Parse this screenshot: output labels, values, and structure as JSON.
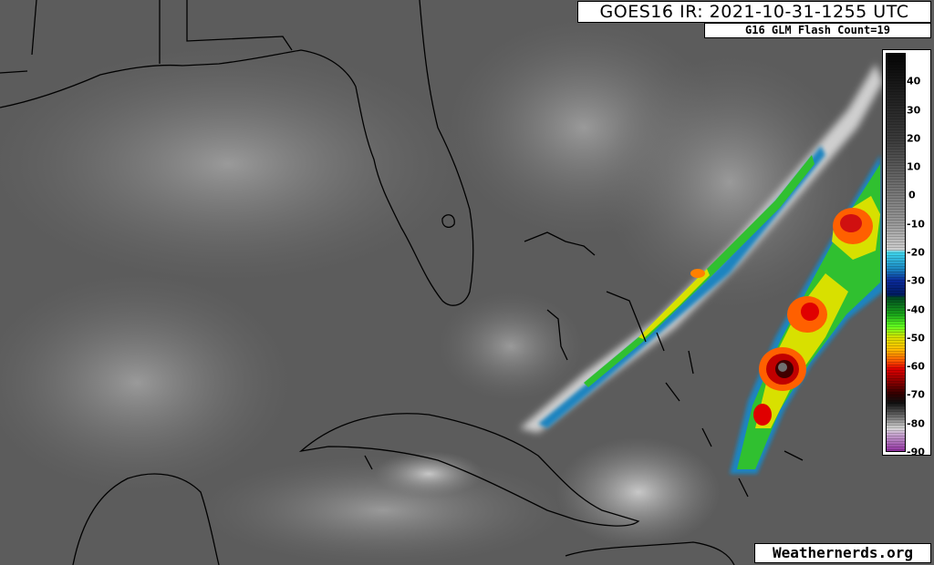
{
  "header": {
    "title": "GOES16 IR: 2021-10-31-1255 UTC",
    "flash_count": "G16 GLM Flash Count=19"
  },
  "colorbar": {
    "unit_scale": "brightness temperature",
    "labels": [
      "40",
      "30",
      "20",
      "10",
      "0",
      "-10",
      "-20",
      "-30",
      "-40",
      "-50",
      "-60",
      "-70",
      "-80",
      "-90"
    ],
    "values": [
      40,
      30,
      20,
      10,
      0,
      -10,
      -20,
      -30,
      -40,
      -50,
      -60,
      -70,
      -80,
      -90
    ],
    "range": [
      50,
      -90
    ],
    "stops": [
      {
        "v": 50,
        "c": "#050505"
      },
      {
        "v": 20,
        "c": "#3a3a3a"
      },
      {
        "v": -10,
        "c": "#9a9a9a"
      },
      {
        "v": -19,
        "c": "#cfcfcf"
      },
      {
        "v": -20,
        "c": "#3fd8ee"
      },
      {
        "v": -26,
        "c": "#1a84c0"
      },
      {
        "v": -30,
        "c": "#0a2a9a"
      },
      {
        "v": -35,
        "c": "#001a60"
      },
      {
        "v": -36,
        "c": "#004a20"
      },
      {
        "v": -42,
        "c": "#1aa81a"
      },
      {
        "v": -46,
        "c": "#60ff20"
      },
      {
        "v": -50,
        "c": "#d8e000"
      },
      {
        "v": -54,
        "c": "#ffc000"
      },
      {
        "v": -58,
        "c": "#ff6000"
      },
      {
        "v": -61,
        "c": "#e00000"
      },
      {
        "v": -66,
        "c": "#800000"
      },
      {
        "v": -70,
        "c": "#300000"
      },
      {
        "v": -73,
        "c": "#101010"
      },
      {
        "v": -78,
        "c": "#707070"
      },
      {
        "v": -82,
        "c": "#d8d8d8"
      },
      {
        "v": -84,
        "c": "#c8a8d0"
      },
      {
        "v": -90,
        "c": "#9030a0"
      }
    ]
  },
  "watermark": "Weathernerds.org"
}
